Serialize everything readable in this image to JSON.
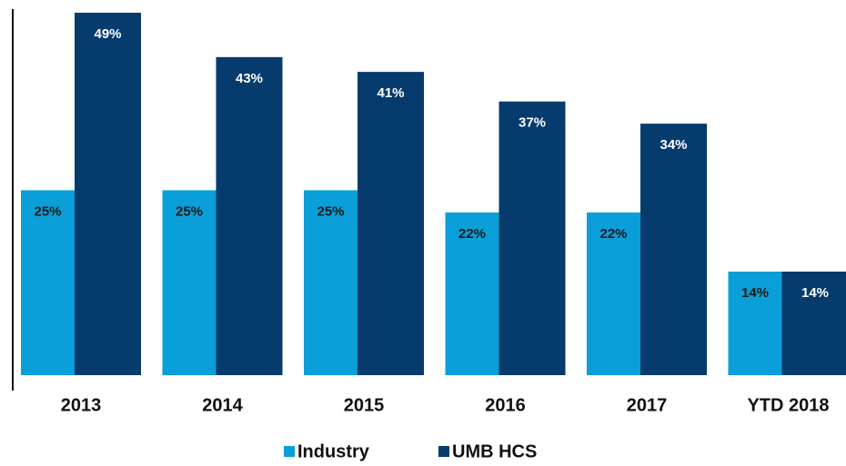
{
  "chart_data": {
    "type": "bar",
    "categories": [
      "2013",
      "2014",
      "2015",
      "2016",
      "2017",
      "YTD 2018"
    ],
    "series": [
      {
        "name": "Industry",
        "color": "#0a9fd8",
        "values": [
          25,
          25,
          25,
          22,
          22,
          14
        ],
        "value_labels": [
          "25%",
          "25%",
          "25%",
          "22%",
          "22%",
          "14%"
        ]
      },
      {
        "name": "UMB HCS",
        "color": "#063b6d",
        "values": [
          49,
          43,
          41,
          37,
          34,
          14
        ],
        "value_labels": [
          "49%",
          "43%",
          "41%",
          "37%",
          "34%",
          "14%"
        ]
      }
    ]
  }
}
